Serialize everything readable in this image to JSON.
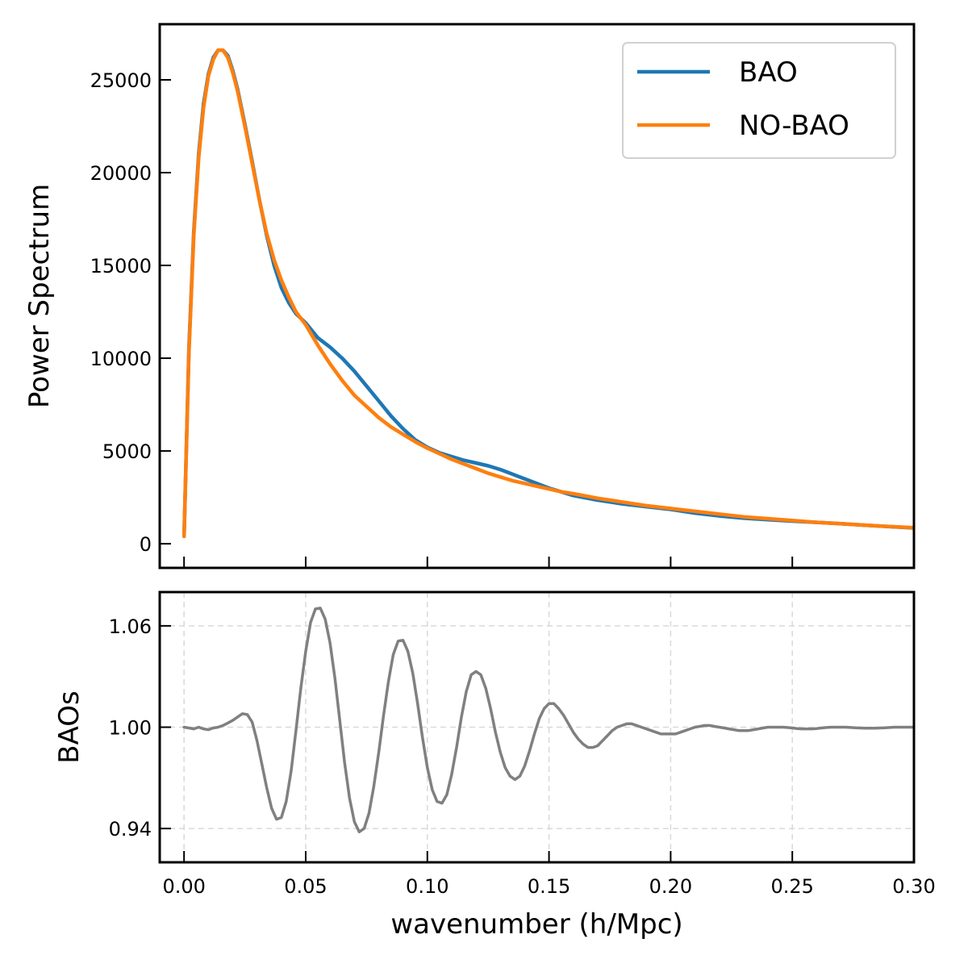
{
  "chart_data": [
    {
      "type": "line",
      "panel": "top",
      "xlabel": "",
      "ylabel": "Power Spectrum",
      "xlim": [
        -0.01,
        0.3
      ],
      "ylim": [
        -1300,
        28000
      ],
      "yticks": [
        0,
        5000,
        10000,
        15000,
        20000,
        25000
      ],
      "ytick_labels": [
        "0",
        "5000",
        "10000",
        "15000",
        "20000",
        "25000"
      ],
      "xticks": [
        0.0,
        0.05,
        0.1,
        0.15,
        0.2,
        0.25,
        0.3
      ],
      "grid": false,
      "legend": {
        "placement": "top-right",
        "entries": [
          {
            "label": "BAO",
            "color": "#1f77b4"
          },
          {
            "label": "NO-BAO",
            "color": "#ff7f0e"
          }
        ]
      },
      "series": [
        {
          "name": "BAO",
          "color": "#1f77b4",
          "x": [
            0.0,
            0.002,
            0.004,
            0.006,
            0.008,
            0.01,
            0.012,
            0.014,
            0.016,
            0.018,
            0.02,
            0.022,
            0.025,
            0.028,
            0.031,
            0.034,
            0.037,
            0.04,
            0.043,
            0.046,
            0.05,
            0.055,
            0.06,
            0.065,
            0.07,
            0.075,
            0.08,
            0.085,
            0.09,
            0.095,
            0.1,
            0.105,
            0.11,
            0.115,
            0.12,
            0.125,
            0.13,
            0.135,
            0.14,
            0.145,
            0.15,
            0.155,
            0.16,
            0.17,
            0.18,
            0.19,
            0.2,
            0.21,
            0.22,
            0.23,
            0.24,
            0.25,
            0.26,
            0.27,
            0.28,
            0.29,
            0.3
          ],
          "y": [
            400,
            10500,
            16800,
            21000,
            23700,
            25300,
            26200,
            26600,
            26600,
            26300,
            25500,
            24500,
            22600,
            20600,
            18500,
            16600,
            15000,
            13800,
            13000,
            12400,
            11900,
            11100,
            10600,
            10000,
            9300,
            8500,
            7700,
            6900,
            6200,
            5600,
            5200,
            4900,
            4700,
            4500,
            4350,
            4200,
            4000,
            3750,
            3500,
            3250,
            3000,
            2800,
            2600,
            2350,
            2150,
            2000,
            1850,
            1650,
            1500,
            1380,
            1300,
            1220,
            1150,
            1080,
            1000,
            920,
            850
          ]
        },
        {
          "name": "NO-BAO",
          "color": "#ff7f0e",
          "x": [
            0.0,
            0.002,
            0.004,
            0.006,
            0.008,
            0.01,
            0.012,
            0.014,
            0.016,
            0.018,
            0.02,
            0.022,
            0.025,
            0.028,
            0.031,
            0.034,
            0.037,
            0.04,
            0.043,
            0.046,
            0.05,
            0.055,
            0.06,
            0.065,
            0.07,
            0.075,
            0.08,
            0.085,
            0.09,
            0.095,
            0.1,
            0.105,
            0.11,
            0.115,
            0.12,
            0.125,
            0.13,
            0.135,
            0.14,
            0.145,
            0.15,
            0.155,
            0.16,
            0.17,
            0.18,
            0.19,
            0.2,
            0.21,
            0.22,
            0.23,
            0.24,
            0.25,
            0.26,
            0.27,
            0.28,
            0.29,
            0.3
          ],
          "y": [
            400,
            10300,
            16600,
            20800,
            23500,
            25200,
            26100,
            26600,
            26600,
            26200,
            25400,
            24400,
            22500,
            20500,
            18500,
            16700,
            15300,
            14200,
            13300,
            12500,
            11800,
            10700,
            9700,
            8800,
            8000,
            7400,
            6800,
            6300,
            5900,
            5500,
            5150,
            4850,
            4550,
            4300,
            4050,
            3800,
            3600,
            3400,
            3250,
            3100,
            2950,
            2800,
            2700,
            2450,
            2250,
            2050,
            1900,
            1750,
            1600,
            1450,
            1350,
            1250,
            1150,
            1080,
            1000,
            930,
            860
          ]
        }
      ]
    },
    {
      "type": "line",
      "panel": "bottom",
      "xlabel": "wavenumber (h/Mpc)",
      "ylabel": "BAOs",
      "xlim": [
        -0.01,
        0.3
      ],
      "ylim": [
        0.92,
        1.08
      ],
      "yticks": [
        0.94,
        1.0,
        1.06
      ],
      "ytick_labels": [
        "0.94",
        "1.00",
        "1.06"
      ],
      "xticks": [
        0.0,
        0.05,
        0.1,
        0.15,
        0.2,
        0.25,
        0.3
      ],
      "xtick_labels": [
        "0.00",
        "0.05",
        "0.10",
        "0.15",
        "0.20",
        "0.25",
        "0.30"
      ],
      "grid": true,
      "series": [
        {
          "color": "#808080",
          "x": [
            0.0,
            0.002,
            0.004,
            0.006,
            0.008,
            0.01,
            0.012,
            0.014,
            0.016,
            0.018,
            0.02,
            0.022,
            0.024,
            0.026,
            0.028,
            0.03,
            0.032,
            0.034,
            0.036,
            0.038,
            0.04,
            0.042,
            0.044,
            0.046,
            0.048,
            0.05,
            0.052,
            0.054,
            0.056,
            0.058,
            0.06,
            0.062,
            0.064,
            0.066,
            0.068,
            0.07,
            0.072,
            0.074,
            0.076,
            0.078,
            0.08,
            0.082,
            0.084,
            0.086,
            0.088,
            0.09,
            0.092,
            0.094,
            0.096,
            0.098,
            0.1,
            0.102,
            0.104,
            0.106,
            0.108,
            0.11,
            0.112,
            0.114,
            0.116,
            0.118,
            0.12,
            0.122,
            0.124,
            0.126,
            0.128,
            0.13,
            0.132,
            0.134,
            0.136,
            0.138,
            0.14,
            0.142,
            0.144,
            0.146,
            0.148,
            0.15,
            0.152,
            0.154,
            0.156,
            0.158,
            0.16,
            0.162,
            0.164,
            0.166,
            0.168,
            0.17,
            0.172,
            0.174,
            0.176,
            0.178,
            0.18,
            0.182,
            0.184,
            0.186,
            0.188,
            0.19,
            0.192,
            0.194,
            0.196,
            0.198,
            0.2,
            0.202,
            0.204,
            0.206,
            0.208,
            0.21,
            0.212,
            0.214,
            0.216,
            0.218,
            0.22,
            0.222,
            0.224,
            0.226,
            0.228,
            0.23,
            0.232,
            0.234,
            0.236,
            0.238,
            0.24,
            0.242,
            0.244,
            0.246,
            0.248,
            0.25,
            0.252,
            0.254,
            0.256,
            0.258,
            0.26,
            0.262,
            0.264,
            0.266,
            0.268,
            0.27,
            0.272,
            0.274,
            0.276,
            0.278,
            0.28,
            0.282,
            0.284,
            0.286,
            0.288,
            0.29,
            0.292,
            0.294,
            0.296,
            0.298,
            0.3
          ],
          "y": [
            1.0,
            0.9995,
            0.999,
            1.0,
            0.999,
            0.9985,
            0.9995,
            1.0,
            1.001,
            1.0025,
            1.004,
            1.006,
            1.008,
            1.0075,
            1.003,
            0.992,
            0.978,
            0.964,
            0.952,
            0.9455,
            0.9465,
            0.956,
            0.974,
            0.998,
            1.023,
            1.045,
            1.062,
            1.07,
            1.0705,
            1.064,
            1.05,
            1.029,
            1.004,
            0.979,
            0.958,
            0.944,
            0.938,
            0.94,
            0.949,
            0.965,
            0.985,
            1.007,
            1.027,
            1.043,
            1.051,
            1.0515,
            1.045,
            1.032,
            1.014,
            0.994,
            0.976,
            0.963,
            0.956,
            0.955,
            0.96,
            0.972,
            0.988,
            1.006,
            1.021,
            1.031,
            1.033,
            1.031,
            1.023,
            1.011,
            0.997,
            0.985,
            0.976,
            0.971,
            0.969,
            0.971,
            0.977,
            0.986,
            0.996,
            1.005,
            1.011,
            1.014,
            1.014,
            1.011,
            1.007,
            1.002,
            0.997,
            0.993,
            0.99,
            0.988,
            0.988,
            0.989,
            0.992,
            0.995,
            0.998,
            1.0,
            1.001,
            1.002,
            1.002,
            1.001,
            1.0,
            0.999,
            0.998,
            0.997,
            0.996,
            0.996,
            0.996,
            0.996,
            0.997,
            0.998,
            0.999,
            1.0,
            1.0005,
            1.001,
            1.001,
            1.0005,
            1.0,
            0.9995,
            0.999,
            0.9985,
            0.998,
            0.998,
            0.998,
            0.9985,
            0.999,
            0.9995,
            1.0,
            1.0,
            1.0,
            1.0,
            0.9998,
            0.9995,
            0.9992,
            0.999,
            0.999,
            0.999,
            0.9992,
            0.9995,
            0.9998,
            1.0,
            1.0,
            1.0,
            1.0,
            0.9998,
            0.9996,
            0.9995,
            0.9994,
            0.9994,
            0.9994,
            0.9995,
            0.9996,
            0.9998,
            1.0,
            1.0,
            1.0,
            1.0,
            1.0
          ]
        }
      ]
    }
  ]
}
